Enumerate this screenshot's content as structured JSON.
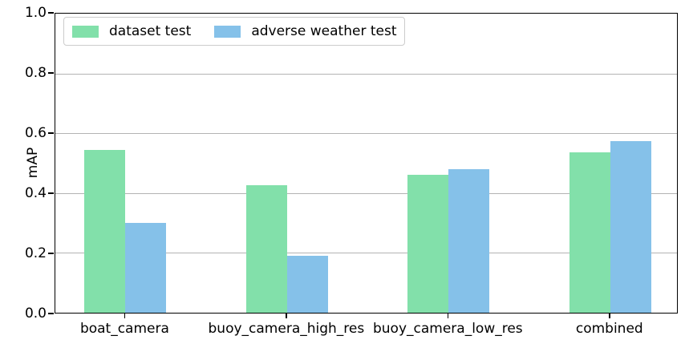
{
  "colors": {
    "series_green": "#82e0aa",
    "series_blue": "#85c1e9",
    "gridline": "#b3b3b3",
    "spine": "#000000",
    "legend_border": "#cccccc"
  },
  "chart_data": {
    "type": "bar",
    "title": "",
    "xlabel": "",
    "ylabel": "mAP",
    "ylim": [
      0.0,
      1.0
    ],
    "grid": "horizontal",
    "legend_position": "upper left",
    "categories": [
      "boat_camera",
      "buoy_camera_high_res",
      "buoy_camera_low_res",
      "combined"
    ],
    "ytick_labels": [
      "0.0",
      "0.2",
      "0.4",
      "0.6",
      "0.8",
      "1.0"
    ],
    "series": [
      {
        "name": "dataset test",
        "color": "#82e0aa",
        "values": [
          0.545,
          0.425,
          0.46,
          0.535
        ]
      },
      {
        "name": "adverse weather test",
        "color": "#85c1e9",
        "values": [
          0.3,
          0.19,
          0.48,
          0.575
        ]
      }
    ]
  }
}
